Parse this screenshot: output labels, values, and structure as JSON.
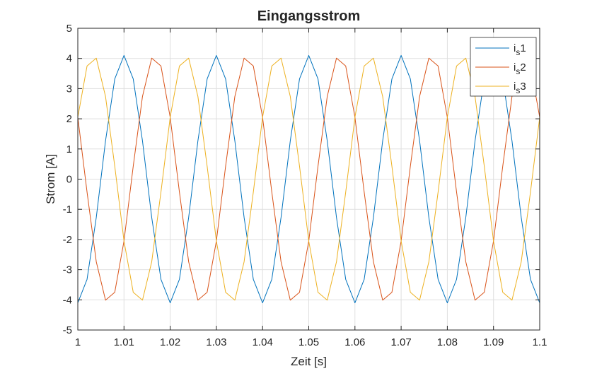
{
  "chart_data": {
    "type": "line",
    "title": "Eingangsstrom",
    "xlabel": "Zeit [s]",
    "ylabel": "Strom [A]",
    "xlim": [
      1,
      1.1
    ],
    "ylim": [
      -5,
      5
    ],
    "x_ticks": [
      1,
      1.01,
      1.02,
      1.03,
      1.04,
      1.05,
      1.06,
      1.07,
      1.08,
      1.09,
      1.1
    ],
    "x_tick_labels": [
      "1",
      "1.01",
      "1.02",
      "1.03",
      "1.04",
      "1.05",
      "1.06",
      "1.07",
      "1.08",
      "1.09",
      "1.1"
    ],
    "y_ticks": [
      5,
      4,
      3,
      2,
      1,
      0,
      -1,
      -2,
      -3,
      -4,
      -5
    ],
    "y_tick_labels": [
      "5",
      "4",
      "3",
      "2",
      "1",
      "0",
      "-1",
      "-2",
      "-3",
      "-4",
      "-5"
    ],
    "grid": true,
    "legend_position": "top-right",
    "series": [
      {
        "name": "1",
        "legend_main": "i",
        "legend_sub": "s",
        "legend_suffix": "1",
        "color": "#0072BD",
        "x": [
          1.0,
          1.002,
          1.004,
          1.006,
          1.008,
          1.01,
          1.012,
          1.014,
          1.016,
          1.018,
          1.02,
          1.022,
          1.024,
          1.026,
          1.028,
          1.03,
          1.032,
          1.034,
          1.036,
          1.038,
          1.04,
          1.042,
          1.044,
          1.046,
          1.048,
          1.05,
          1.052,
          1.054,
          1.056,
          1.058,
          1.06,
          1.062,
          1.064,
          1.066,
          1.068,
          1.07,
          1.072,
          1.074,
          1.076,
          1.078,
          1.08,
          1.082,
          1.084,
          1.086,
          1.088,
          1.09,
          1.092,
          1.094,
          1.096,
          1.098,
          1.1
        ],
        "values": [
          -4.1,
          -3.32,
          -1.27,
          1.27,
          3.32,
          4.1,
          3.32,
          1.27,
          -1.27,
          -3.32,
          -4.1,
          -3.32,
          -1.27,
          1.27,
          3.32,
          4.1,
          3.32,
          1.27,
          -1.27,
          -3.32,
          -4.1,
          -3.32,
          -1.27,
          1.27,
          3.32,
          4.1,
          3.32,
          1.27,
          -1.27,
          -3.32,
          -4.1,
          -3.32,
          -1.27,
          1.27,
          3.32,
          4.1,
          3.32,
          1.27,
          -1.27,
          -3.32,
          -4.1,
          -3.32,
          -1.27,
          1.27,
          3.32,
          4.1,
          3.32,
          1.27,
          -1.27,
          -3.32,
          -4.1
        ]
      },
      {
        "name": "2",
        "legend_main": "i",
        "legend_sub": "s",
        "legend_suffix": "2",
        "color": "#D95319",
        "x": [
          1.0,
          1.002,
          1.004,
          1.006,
          1.008,
          1.01,
          1.012,
          1.014,
          1.016,
          1.018,
          1.02,
          1.022,
          1.024,
          1.026,
          1.028,
          1.03,
          1.032,
          1.034,
          1.036,
          1.038,
          1.04,
          1.042,
          1.044,
          1.046,
          1.048,
          1.05,
          1.052,
          1.054,
          1.056,
          1.058,
          1.06,
          1.062,
          1.064,
          1.066,
          1.068,
          1.07,
          1.072,
          1.074,
          1.076,
          1.078,
          1.08,
          1.082,
          1.084,
          1.086,
          1.088,
          1.09,
          1.092,
          1.094,
          1.096,
          1.098,
          1.1
        ],
        "values": [
          2.05,
          -0.43,
          -2.74,
          -4.01,
          -3.75,
          -2.05,
          0.43,
          2.74,
          4.01,
          3.75,
          2.05,
          -0.43,
          -2.74,
          -4.01,
          -3.75,
          -2.05,
          0.43,
          2.74,
          4.01,
          3.75,
          2.05,
          -0.43,
          -2.74,
          -4.01,
          -3.75,
          -2.05,
          0.43,
          2.74,
          4.01,
          3.75,
          2.05,
          -0.43,
          -2.74,
          -4.01,
          -3.75,
          -2.05,
          0.43,
          2.74,
          4.01,
          3.75,
          2.05,
          -0.43,
          -2.74,
          -4.01,
          -3.75,
          -2.05,
          0.43,
          2.74,
          4.01,
          3.75,
          2.05
        ]
      },
      {
        "name": "3",
        "legend_main": "i",
        "legend_sub": "s",
        "legend_suffix": "3",
        "color": "#EDB120",
        "x": [
          1.0,
          1.002,
          1.004,
          1.006,
          1.008,
          1.01,
          1.012,
          1.014,
          1.016,
          1.018,
          1.02,
          1.022,
          1.024,
          1.026,
          1.028,
          1.03,
          1.032,
          1.034,
          1.036,
          1.038,
          1.04,
          1.042,
          1.044,
          1.046,
          1.048,
          1.05,
          1.052,
          1.054,
          1.056,
          1.058,
          1.06,
          1.062,
          1.064,
          1.066,
          1.068,
          1.07,
          1.072,
          1.074,
          1.076,
          1.078,
          1.08,
          1.082,
          1.084,
          1.086,
          1.088,
          1.09,
          1.092,
          1.094,
          1.096,
          1.098,
          1.1
        ],
        "values": [
          2.05,
          3.75,
          4.01,
          2.74,
          0.43,
          -2.05,
          -3.75,
          -4.01,
          -2.74,
          -0.43,
          2.05,
          3.75,
          4.01,
          2.74,
          0.43,
          -2.05,
          -3.75,
          -4.01,
          -2.74,
          -0.43,
          2.05,
          3.75,
          4.01,
          2.74,
          0.43,
          -2.05,
          -3.75,
          -4.01,
          -2.74,
          -0.43,
          2.05,
          3.75,
          4.01,
          2.74,
          0.43,
          -2.05,
          -3.75,
          -4.01,
          -2.74,
          -0.43,
          2.05,
          3.75,
          4.01,
          2.74,
          0.43,
          -2.05,
          -3.75,
          -4.01,
          -2.74,
          -0.43,
          2.05
        ]
      }
    ]
  }
}
